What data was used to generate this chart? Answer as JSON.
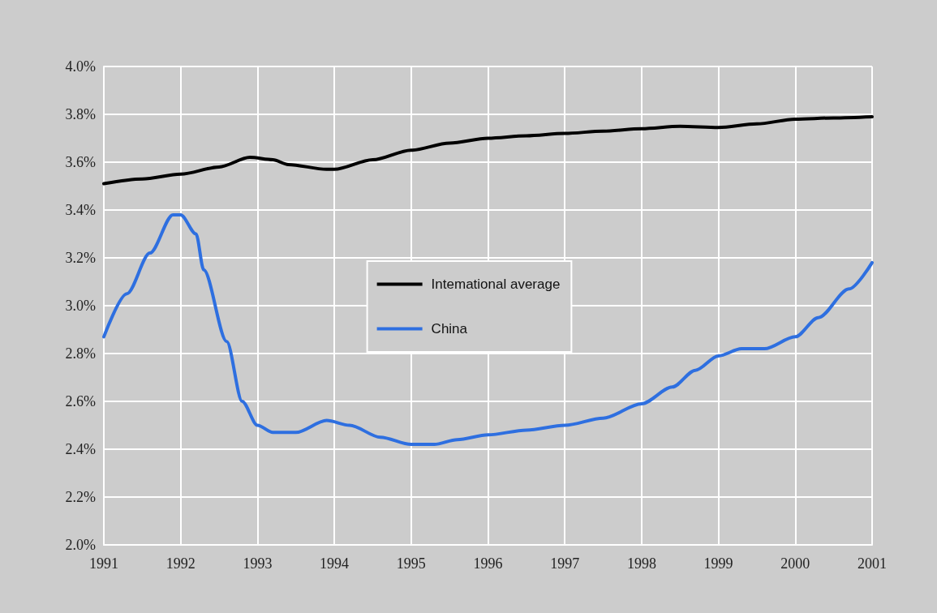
{
  "chart_data": {
    "type": "line",
    "xlim": [
      1991,
      2001
    ],
    "xticks": [
      1991,
      1992,
      1993,
      1994,
      1995,
      1996,
      1997,
      1998,
      1999,
      2000,
      2001
    ],
    "ylim": [
      2.0,
      4.0
    ],
    "yticks": [
      {
        "value": 2.0,
        "label": "2.0%"
      },
      {
        "value": 2.2,
        "label": "2.2%"
      },
      {
        "value": 2.4,
        "label": "2.4%"
      },
      {
        "value": 2.6,
        "label": "2.6%"
      },
      {
        "value": 2.8,
        "label": "2.8%"
      },
      {
        "value": 3.0,
        "label": "3.0%"
      },
      {
        "value": 3.2,
        "label": "3.2%"
      },
      {
        "value": 3.4,
        "label": "3.4%"
      },
      {
        "value": 3.6,
        "label": "3.6%"
      },
      {
        "value": 3.8,
        "label": "3.8%"
      },
      {
        "value": 4.0,
        "label": "4.0%"
      }
    ],
    "grid": true,
    "legend": "center",
    "marker": "none",
    "line_style": "solid",
    "series": [
      {
        "name": "Intemational average",
        "color": "#000000",
        "x": [
          1991,
          1991.5,
          1992,
          1992.5,
          1992.9,
          1993.2,
          1993.4,
          1993.9,
          1994,
          1994.5,
          1995,
          1995.5,
          1996,
          1996.5,
          1997,
          1997.5,
          1998,
          1998.5,
          1999,
          1999.5,
          2000,
          2000.5,
          2001
        ],
        "values": [
          3.51,
          3.53,
          3.55,
          3.58,
          3.62,
          3.61,
          3.59,
          3.57,
          3.57,
          3.61,
          3.65,
          3.68,
          3.7,
          3.71,
          3.72,
          3.73,
          3.74,
          3.75,
          3.745,
          3.76,
          3.78,
          3.785,
          3.79
        ]
      },
      {
        "name": "China",
        "color": "#2e6fe0",
        "x": [
          1991,
          1991.3,
          1991.6,
          1991.9,
          1992,
          1992.2,
          1992.3,
          1992.6,
          1992.8,
          1993,
          1993.2,
          1993.5,
          1993.9,
          1994.2,
          1994.6,
          1995,
          1995.3,
          1995.6,
          1996,
          1996.5,
          1997,
          1997.5,
          1998,
          1998.4,
          1998.7,
          1999,
          1999.3,
          1999.6,
          2000,
          2000.3,
          2000.7,
          2001
        ],
        "values": [
          2.87,
          3.05,
          3.22,
          3.38,
          3.38,
          3.3,
          3.15,
          2.85,
          2.6,
          2.5,
          2.47,
          2.47,
          2.52,
          2.5,
          2.45,
          2.42,
          2.42,
          2.44,
          2.46,
          2.48,
          2.5,
          2.53,
          2.59,
          2.66,
          2.73,
          2.79,
          2.82,
          2.82,
          2.87,
          2.95,
          3.07,
          3.18
        ]
      }
    ]
  }
}
